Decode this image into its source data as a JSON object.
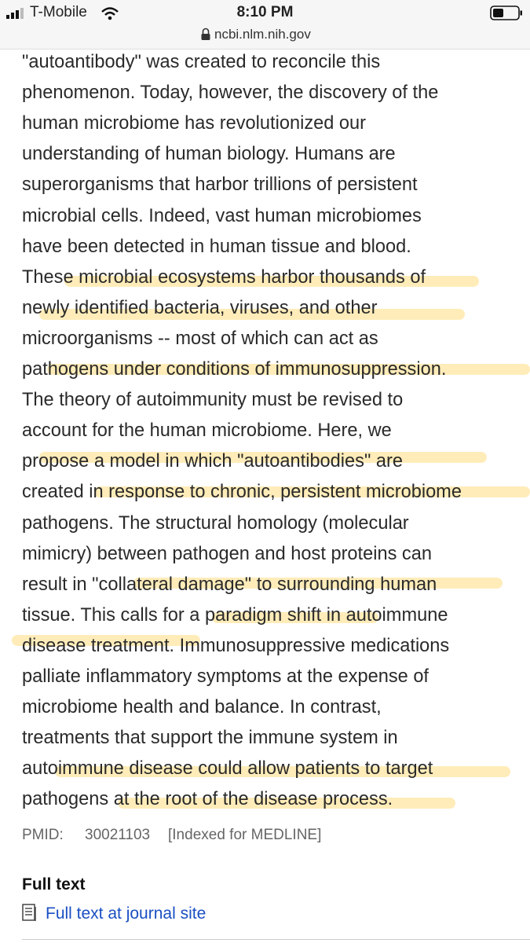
{
  "status_bar": {
    "carrier": "T-Mobile",
    "time": "8:10 PM",
    "url": "ncbi.nlm.nih.gov"
  },
  "abstract": {
    "lines": [
      "\"autoantibody\" was created to reconcile this",
      "phenomenon. Today, however, the discovery of the",
      "human microbiome has revolutionized our",
      "understanding of human biology. Humans are",
      "superorganisms that harbor trillions of persistent",
      "microbial cells. Indeed, vast human microbiomes",
      "have been detected in human tissue and blood.",
      "These microbial ecosystems harbor thousands of",
      "newly identified bacteria, viruses, and other",
      "microorganisms -- most of which can act as",
      "pathogens under conditions of immunosuppression.",
      "The theory of autoimmunity must be revised to",
      "account for the human microbiome. Here, we",
      "propose a model in which \"autoantibodies\" are",
      "created in response to chronic, persistent microbiome",
      "pathogens. The structural homology (molecular",
      "mimicry) between pathogen and host proteins can",
      "result in \"collateral damage\" to surrounding human",
      "tissue. This calls for a paradigm shift in autoimmune",
      "disease treatment. Immunosuppressive medications",
      "palliate inflammatory symptoms at the expense of",
      "microbiome health and balance. In contrast,",
      "treatments that support the immune system in",
      "autoimmune disease could allow patients to target",
      "pathogens at the root of the disease process."
    ]
  },
  "pmid": {
    "label": "PMID:",
    "number": "30021103",
    "note": "[Indexed for MEDLINE]"
  },
  "full_text": {
    "heading": "Full text",
    "link": "Full text at journal site"
  }
}
